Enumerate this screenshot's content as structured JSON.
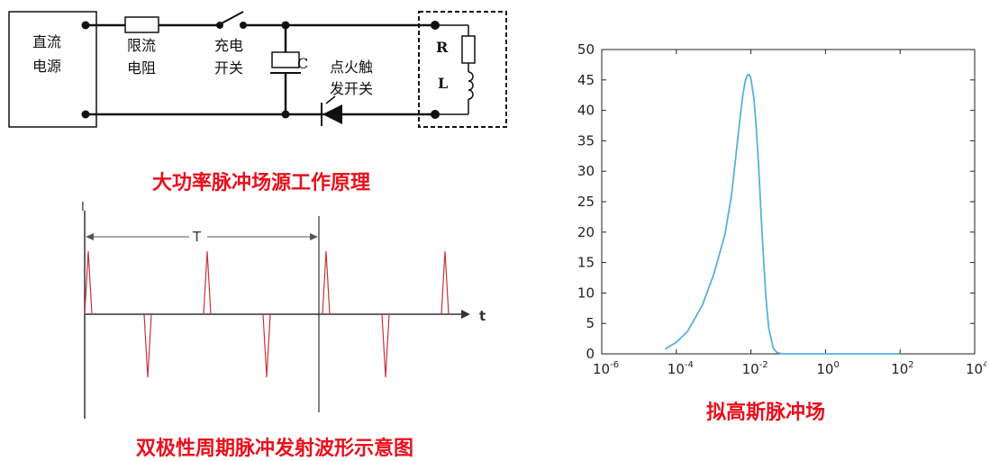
{
  "circuit": {
    "source_label_1": "直流",
    "source_label_2": "电源",
    "resistor_label_1": "限流",
    "resistor_label_2": "电阻",
    "switch_label_1": "充电",
    "switch_label_2": "开关",
    "capacitor_label": "C",
    "trigger_label_1": "点火触",
    "trigger_label_2": "发开关",
    "resistor_load_label": "R",
    "inductor_label": "L",
    "caption": "大功率脉冲场源工作原理"
  },
  "waveform": {
    "y_axis_label": "I",
    "x_axis_label": "t",
    "period_label": "T",
    "caption": "双极性周期脉冲发射波形示意图",
    "line_color": "#c8323c",
    "pulse_sequence": [
      1,
      -1,
      1,
      -1,
      1,
      -1,
      1
    ]
  },
  "gauss": {
    "caption": "拟高斯脉冲场",
    "line_color": "#5aafdf"
  },
  "chart_data": {
    "type": "line",
    "title": "",
    "xlabel": "",
    "ylabel": "",
    "x_scale": "log",
    "xlim": [
      1e-06,
      10000
    ],
    "ylim": [
      0,
      50
    ],
    "x_ticks": [
      "10-6",
      "10-4",
      "10-2",
      "100",
      "102",
      "104"
    ],
    "y_ticks": [
      "0",
      "5",
      "10",
      "15",
      "20",
      "25",
      "30",
      "35",
      "40",
      "45",
      "50"
    ],
    "series": [
      {
        "x": [
          5e-05,
          0.0001,
          0.0002,
          0.0005,
          0.001,
          0.002,
          0.003,
          0.004,
          0.005,
          0.006,
          0.007,
          0.008,
          0.009,
          0.01,
          0.012,
          0.014,
          0.016,
          0.02,
          0.025,
          0.03,
          0.04,
          0.05,
          0.07,
          1,
          100
        ],
        "values": [
          0.8,
          1.9,
          3.7,
          8.0,
          13.0,
          19.6,
          26.0,
          32.8,
          38.2,
          42.3,
          44.8,
          45.8,
          45.9,
          45.2,
          42.0,
          37.0,
          31.0,
          19.5,
          9.5,
          4.2,
          0.9,
          0.2,
          0.0,
          0.0,
          0.0
        ]
      }
    ]
  }
}
